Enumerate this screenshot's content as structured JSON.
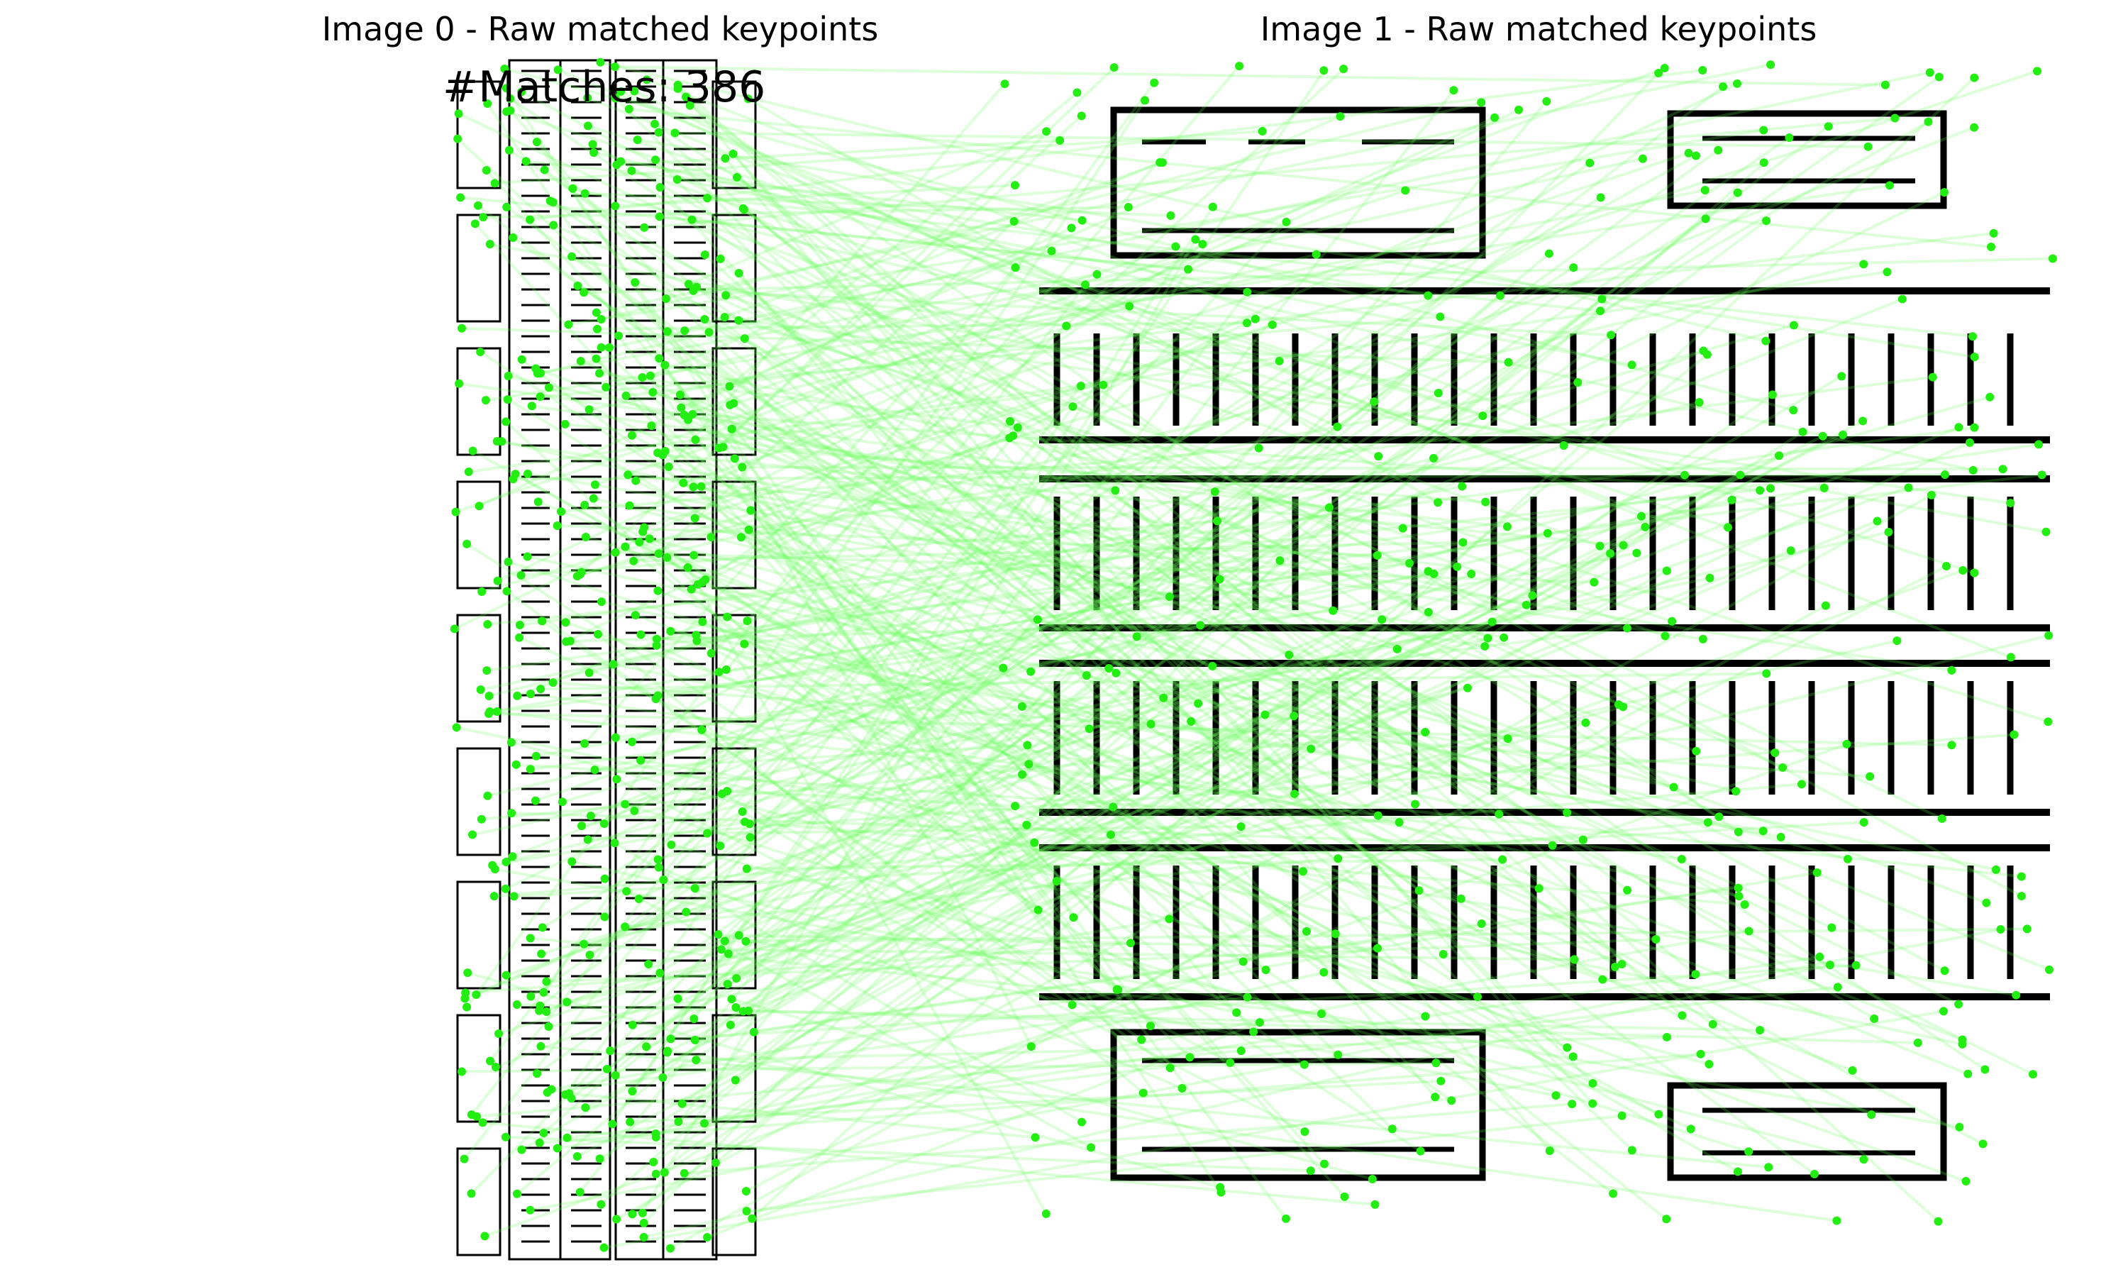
{
  "figure": {
    "panels": [
      {
        "title": "Image 0 - Raw matched keypoints"
      },
      {
        "title": "Image 1 - Raw matched keypoints"
      }
    ],
    "matches_label": "#Matches: 386",
    "match_count": 386,
    "colors": {
      "keypoint": "#22ee11",
      "match_line": "#66ff55",
      "plan_walls": "#000000",
      "background": "#ffffff"
    }
  }
}
